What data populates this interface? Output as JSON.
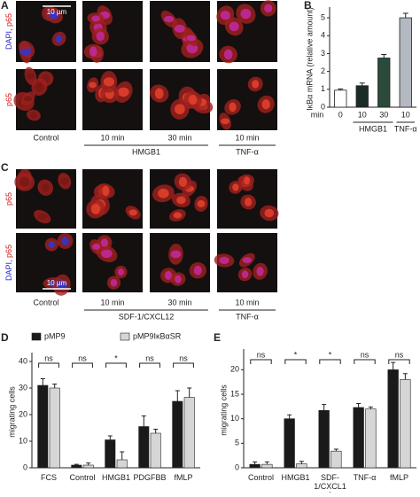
{
  "panel_a": {
    "letter": "A",
    "row_labels": [
      {
        "blue": "DAPI,",
        "red": "p65"
      },
      {
        "red": "p65"
      }
    ],
    "scale_bar": "10 µm",
    "conditions": [
      "Control",
      "10 min",
      "30 min",
      "10 min"
    ],
    "groups": [
      "HMGB1",
      "TNF-α"
    ]
  },
  "panel_c": {
    "letter": "C",
    "row_labels": [
      {
        "red": "p65"
      },
      {
        "blue": "DAPI,",
        "red": "p65"
      }
    ],
    "scale_bar": "10 µm",
    "conditions": [
      "Control",
      "10 min",
      "30 min",
      "10 min"
    ],
    "groups": [
      "SDF-1/CXCL12",
      "TNF-α"
    ]
  },
  "chart_data": [
    {
      "type": "bar",
      "letter": "B",
      "y_label": "IκBα mRNA (relative amount)",
      "x_label": "min",
      "categories": [
        "0",
        "10",
        "30",
        "10"
      ],
      "groups": [
        "HMGB1",
        "TNF-α"
      ],
      "values": [
        0.95,
        1.2,
        2.75,
        5.0
      ],
      "errors": [
        0.07,
        0.15,
        0.2,
        0.25
      ],
      "colors": [
        "#ffffff",
        "#1c2b24",
        "#2b4a3b",
        "#b4b8c0"
      ],
      "ylim": [
        0,
        5.4
      ],
      "yticks": [
        0,
        1,
        2,
        3,
        4,
        5
      ]
    },
    {
      "type": "grouped_bar",
      "letter": "D",
      "y_label": "migrating cells",
      "categories": [
        "FCS",
        "Control",
        "HMGB1",
        "PDGFBB",
        "fMLP"
      ],
      "series": [
        {
          "name": "pMP9",
          "color": "#1a1a1a",
          "values": [
            31,
            1,
            10.5,
            15.5,
            25
          ],
          "errors": [
            2.5,
            0.3,
            1.5,
            4,
            4
          ]
        },
        {
          "name": "pMP9IκBαSR",
          "color": "#d6d6d6",
          "values": [
            30,
            1,
            3,
            13,
            26.5
          ],
          "errors": [
            1.5,
            0.8,
            3,
            1.5,
            3.5
          ]
        }
      ],
      "significance": [
        "ns",
        "ns",
        "*",
        "ns",
        "ns"
      ],
      "ylim": [
        0,
        42
      ],
      "yticks": [
        0,
        10,
        20,
        30,
        40
      ]
    },
    {
      "type": "grouped_bar",
      "letter": "E",
      "y_label": "migrating cells",
      "categories": [
        "Control",
        "HMGB1",
        "SDF-1/CXCL12",
        "TNF-α",
        "fMLP"
      ],
      "series": [
        {
          "color": "#1a1a1a",
          "values": [
            0.7,
            10,
            11.7,
            12.3,
            20
          ],
          "errors": [
            0.5,
            0.8,
            1.2,
            0.8,
            1.5
          ]
        },
        {
          "color": "#d6d6d6",
          "values": [
            0.7,
            0.8,
            3.4,
            12,
            18
          ],
          "errors": [
            0.5,
            0.5,
            0.4,
            0.4,
            1.2
          ]
        }
      ],
      "significance": [
        "ns",
        "*",
        "*",
        "ns",
        "ns"
      ],
      "ylim": [
        0,
        23.5
      ],
      "yticks": [
        0,
        5,
        10,
        15,
        20
      ]
    }
  ]
}
